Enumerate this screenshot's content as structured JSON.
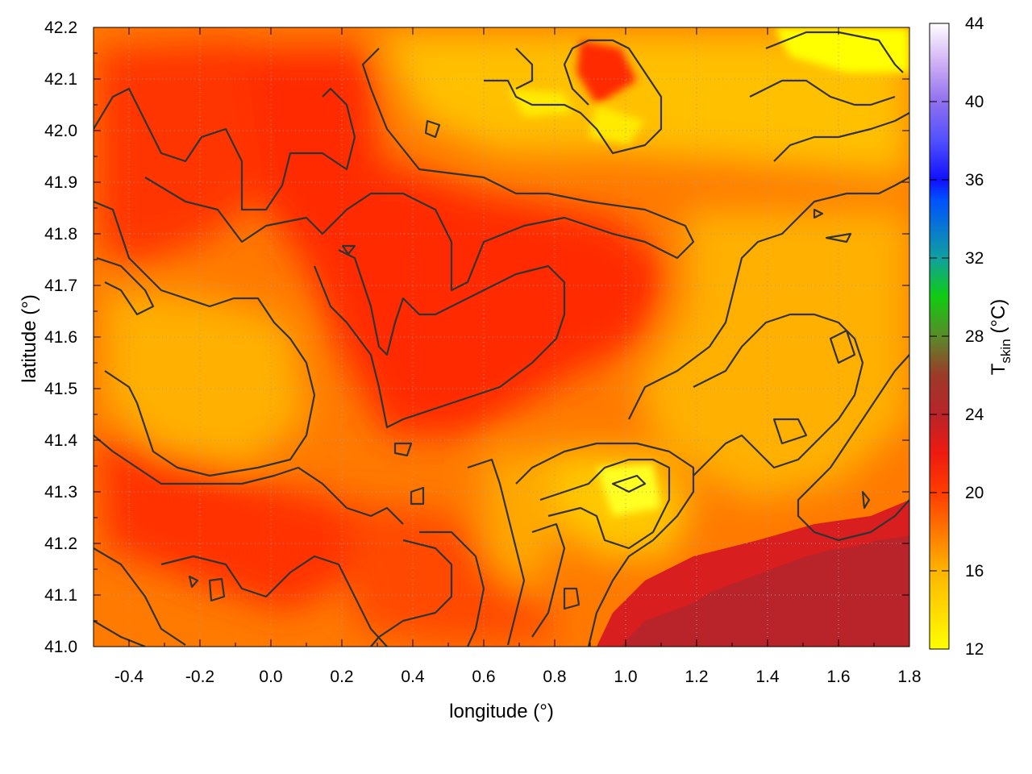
{
  "chart_data": {
    "type": "heatmap",
    "title": "",
    "xlabel": "longitude (°)",
    "ylabel": "latitude (°)",
    "xlim": [
      -0.5,
      1.8
    ],
    "ylim": [
      41.0,
      42.2
    ],
    "x_ticks": [
      "-0.4",
      "-0.2",
      "0.0",
      "0.2",
      "0.4",
      "0.6",
      "0.8",
      "1.0",
      "1.2",
      "1.4",
      "1.6",
      "1.8"
    ],
    "y_ticks": [
      "41.0",
      "41.1",
      "41.2",
      "41.3",
      "41.4",
      "41.5",
      "41.6",
      "41.7",
      "41.8",
      "41.9",
      "42.0",
      "42.1",
      "42.2"
    ],
    "grid": true,
    "contours": true,
    "colorbar": {
      "label_main": "T",
      "label_sub": "skin",
      "label_unit": " (°C)",
      "ticks": [
        "12",
        "16",
        "20",
        "24",
        "28",
        "32",
        "36",
        "40",
        "44"
      ],
      "range": [
        12,
        44
      ],
      "stops": [
        {
          "v": 12,
          "color": "#ffff00"
        },
        {
          "v": 16,
          "color": "#ffb400"
        },
        {
          "v": 20,
          "color": "#ff3c00"
        },
        {
          "v": 22,
          "color": "#ee1a10"
        },
        {
          "v": 24,
          "color": "#b8242a"
        },
        {
          "v": 26,
          "color": "#9c3a28"
        },
        {
          "v": 28,
          "color": "#5a8a2a"
        },
        {
          "v": 30,
          "color": "#10cc10"
        },
        {
          "v": 32,
          "color": "#10a0a0"
        },
        {
          "v": 35,
          "color": "#0050ff"
        },
        {
          "v": 36,
          "color": "#1010ff"
        },
        {
          "v": 38,
          "color": "#5050ff"
        },
        {
          "v": 40,
          "color": "#9070ee"
        },
        {
          "v": 42,
          "color": "#d0b0f4"
        },
        {
          "v": 44,
          "color": "#ffffff"
        }
      ]
    },
    "approx_values": {
      "description": "",
      "cool_regions": [
        {
          "lon": 1.55,
          "lat": 42.12,
          "t": 12.5
        },
        {
          "lon": 0.75,
          "lat": 42.05,
          "t": 14.0
        },
        {
          "lon": 1.05,
          "lat": 41.3,
          "t": 14.0
        },
        {
          "lon": -0.2,
          "lat": 41.55,
          "t": 16.0
        },
        {
          "lon": 1.4,
          "lat": 41.5,
          "t": 15.5
        }
      ],
      "warm_regions": [
        {
          "lon": 0.55,
          "lat": 41.65,
          "t": 21.0
        },
        {
          "lon": 0.2,
          "lat": 41.9,
          "t": 21.0
        },
        {
          "lon": -0.2,
          "lat": 41.3,
          "t": 20.5
        },
        {
          "lon": 1.45,
          "lat": 41.1,
          "t": 24.5
        }
      ]
    }
  }
}
